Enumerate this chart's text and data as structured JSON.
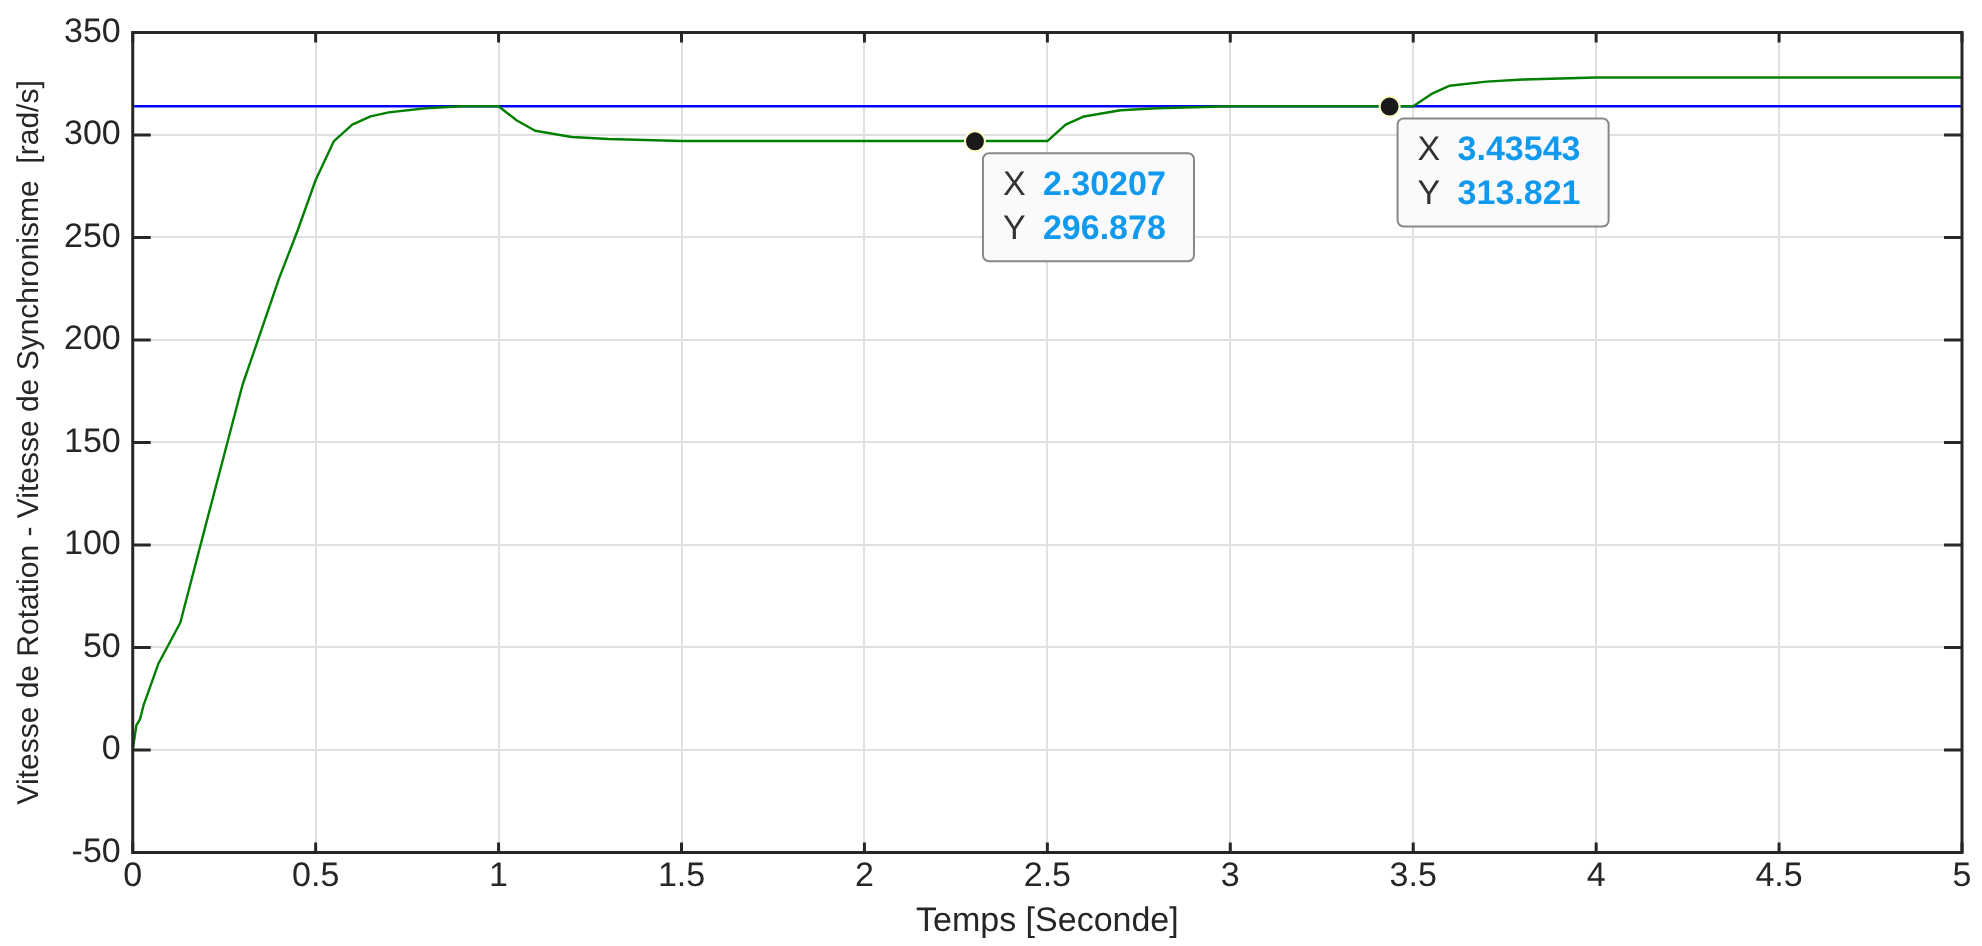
{
  "chart_data": {
    "type": "line",
    "xlabel": "Temps [Seconde]",
    "ylabel": "Vitesse de Rotation - Vitesse de Synchronisme  [rad/s]",
    "xlim": [
      0,
      5
    ],
    "ylim": [
      -50,
      350
    ],
    "xticks": [
      0,
      0.5,
      1,
      1.5,
      2,
      2.5,
      3,
      3.5,
      4,
      4.5,
      5
    ],
    "yticks": [
      -50,
      0,
      50,
      100,
      150,
      200,
      250,
      300,
      350
    ],
    "grid": true,
    "legend": false,
    "marker": "none",
    "line_style": "solid",
    "series": [
      {
        "color": "#0000ff",
        "x": [
          0,
          5
        ],
        "values": [
          314,
          314
        ]
      },
      {
        "color": "#007f00",
        "x": [
          0,
          0.01,
          0.02,
          0.03,
          0.05,
          0.07,
          0.1,
          0.13,
          0.2,
          0.3,
          0.4,
          0.45,
          0.5,
          0.55,
          0.6,
          0.65,
          0.7,
          0.8,
          0.9,
          1.0,
          1.05,
          1.1,
          1.2,
          1.3,
          1.5,
          2.0,
          2.3,
          2.5,
          2.55,
          2.6,
          2.7,
          2.8,
          3.0,
          3.43,
          3.5,
          3.55,
          3.6,
          3.7,
          3.8,
          4.0,
          5.0
        ],
        "values": [
          0,
          12,
          15,
          22,
          32,
          42,
          52,
          62,
          110,
          178,
          230,
          253,
          278,
          297,
          305,
          309,
          311,
          313,
          314,
          314,
          307,
          302,
          299,
          298,
          297,
          297,
          297,
          297,
          305,
          309,
          312,
          313,
          314,
          314,
          314,
          320,
          324,
          326,
          327,
          328,
          328
        ]
      }
    ],
    "annotations": [
      {
        "text": "X 2.30207\nY 296.878",
        "x": 2.30207,
        "y": 296.878
      },
      {
        "text": "X 3.43543\nY 313.821",
        "x": 3.43543,
        "y": 313.821
      }
    ]
  }
}
